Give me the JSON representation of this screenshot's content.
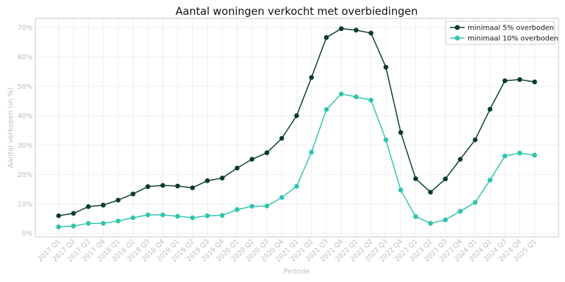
{
  "chart_data": {
    "type": "line",
    "title": "Aantal woningen verkocht met overbiedingen",
    "xlabel": "Periode",
    "ylabel": "Aantal verkopen (in %)",
    "ylim": [
      0,
      70
    ],
    "yticks": [
      0,
      10,
      20,
      30,
      40,
      50,
      60,
      70
    ],
    "ytick_labels": [
      "0%",
      "10%",
      "20%",
      "30%",
      "40%",
      "50%",
      "60%",
      "70%"
    ],
    "grid": true,
    "legend_position": "top-right",
    "categories": [
      "2017 Q1",
      "2017 Q2",
      "2017 Q3",
      "2017 Q4",
      "2018 Q1",
      "2018 Q2",
      "2018 Q3",
      "2018 Q4",
      "2019 Q1",
      "2019 Q2",
      "2019 Q3",
      "2019 Q4",
      "2020 Q1",
      "2020 Q2",
      "2020 Q3",
      "2020 Q4",
      "2021 Q1",
      "2021 Q2",
      "2021 Q3",
      "2021 Q4",
      "2022 Q1",
      "2022 Q2",
      "2022 Q3",
      "2022 Q4",
      "2023 Q1",
      "2023 Q2",
      "2023 Q3",
      "2023 Q4",
      "2024 Q1",
      "2024 Q2",
      "2024 Q3",
      "2024 Q4",
      "2025 Q1"
    ],
    "series": [
      {
        "name": "minimaal 5% overboden",
        "color": "#0b3a33",
        "values": [
          6.0,
          6.8,
          9.1,
          9.6,
          11.3,
          13.4,
          15.9,
          16.3,
          16.1,
          15.5,
          17.9,
          18.8,
          22.2,
          25.2,
          27.4,
          32.3,
          40.0,
          53.0,
          66.6,
          69.6,
          69.1,
          68.1,
          56.5,
          34.3,
          18.6,
          14.0,
          18.5,
          25.2,
          31.8,
          42.2,
          51.9,
          52.3,
          51.5
        ]
      },
      {
        "name": "minimaal 10% overboden",
        "color": "#2ec4b0",
        "values": [
          2.2,
          2.5,
          3.4,
          3.4,
          4.2,
          5.3,
          6.3,
          6.3,
          5.8,
          5.3,
          6.0,
          6.1,
          8.1,
          9.2,
          9.3,
          12.2,
          16.0,
          27.6,
          42.1,
          47.4,
          46.4,
          45.3,
          31.8,
          14.7,
          5.7,
          3.4,
          4.6,
          7.5,
          10.5,
          18.1,
          26.3,
          27.3,
          26.6
        ]
      }
    ]
  }
}
